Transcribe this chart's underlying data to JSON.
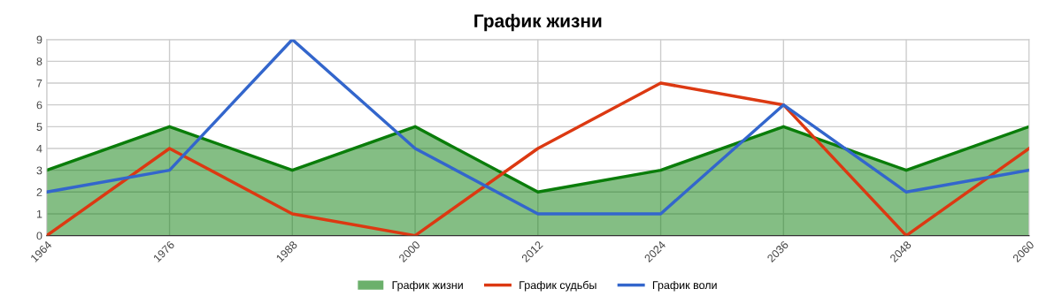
{
  "chart_data": {
    "type": "line",
    "title": "График жизни",
    "categories": [
      "1964",
      "1976",
      "1988",
      "2000",
      "2012",
      "2024",
      "2036",
      "2048",
      "2060"
    ],
    "series": [
      {
        "name": "График жизни",
        "type": "area",
        "color": "#0a7d0a",
        "values": [
          3,
          5,
          3,
          5,
          2,
          3,
          5,
          3,
          5
        ]
      },
      {
        "name": "График судьбы",
        "color": "#dc3912",
        "values": [
          0,
          4,
          1,
          0,
          4,
          7,
          6,
          0,
          4
        ]
      },
      {
        "name": "График воли",
        "color": "#3366cc",
        "values": [
          2,
          3,
          9,
          4,
          1,
          1,
          6,
          2,
          3
        ]
      }
    ],
    "ylim": [
      0,
      9
    ],
    "yticks": [
      0,
      1,
      2,
      3,
      4,
      5,
      6,
      7,
      8,
      9
    ],
    "grid": true,
    "legend": "bottom"
  }
}
